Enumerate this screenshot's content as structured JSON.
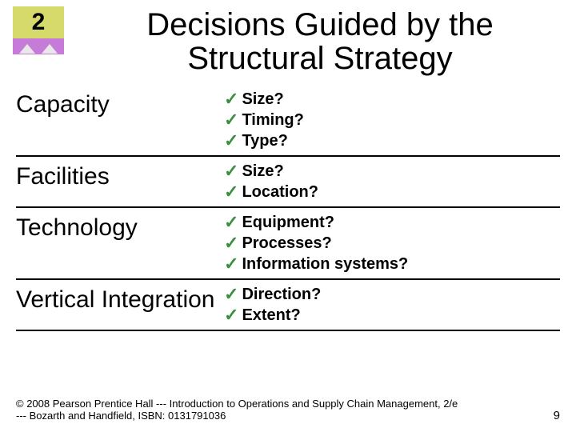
{
  "chapter_number": "2",
  "chapter_num_color": "#000000",
  "chapter_top_bg": "#d6da6a",
  "chapter_bottom_bg": "#c77bd9",
  "title": "Decisions Guided by the Structural Strategy",
  "check_color": "#3b8f3e",
  "check_glyph": "✓",
  "rows": [
    {
      "label": "Capacity",
      "items": [
        "Size?",
        "Timing?",
        "Type?"
      ]
    },
    {
      "label": "Facilities",
      "items": [
        "Size?",
        "Location?"
      ]
    },
    {
      "label": "Technology",
      "items": [
        "Equipment?",
        "Processes?",
        "Information systems?"
      ]
    },
    {
      "label": "Vertical Integration",
      "items": [
        "Direction?",
        "Extent?"
      ]
    }
  ],
  "footer": {
    "copyright": "© 2008 Pearson Prentice Hall --- Introduction to Operations and Supply Chain Management, 2/e --- Bozarth and Handfield, ISBN: 0131791036",
    "page": "9"
  },
  "style": {
    "title_fontsize": 40,
    "label_fontsize": 30,
    "item_fontsize": 20,
    "footer_fontsize": 13,
    "divider_color": "#000000",
    "background_color": "#ffffff"
  }
}
